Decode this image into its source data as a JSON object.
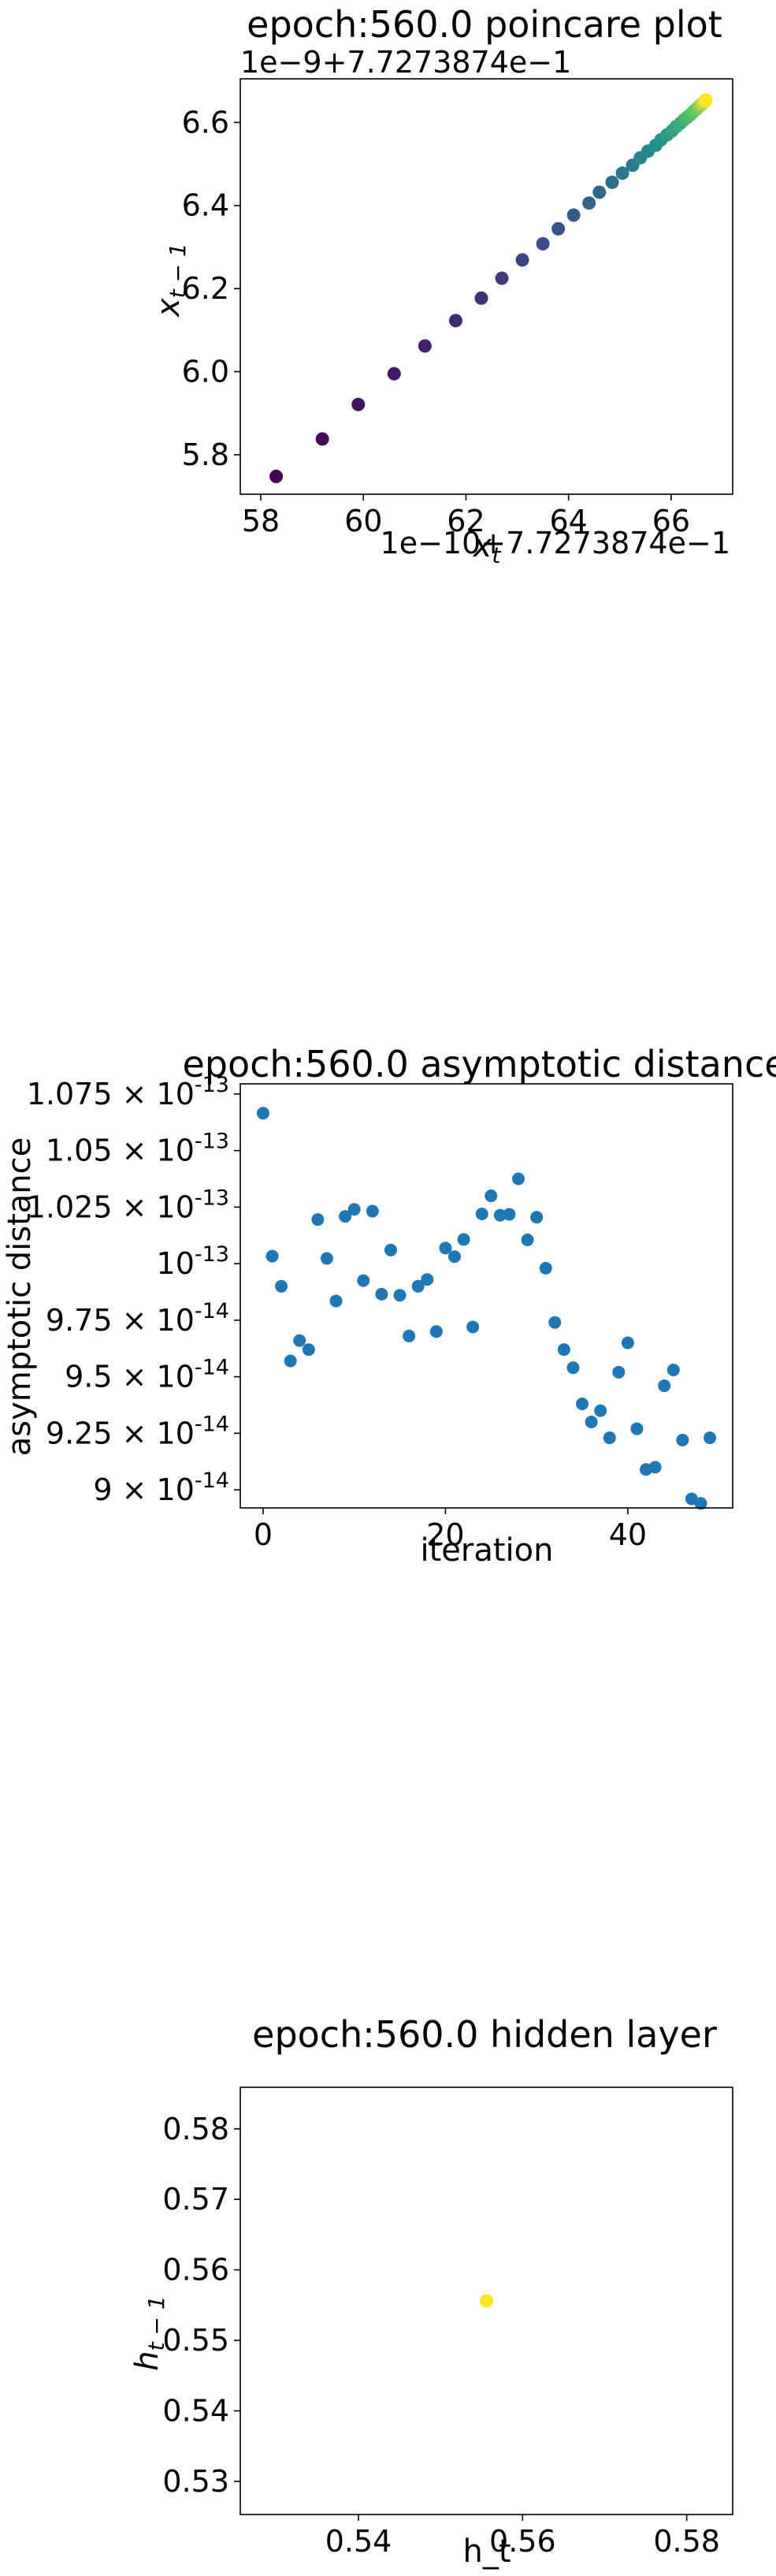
{
  "chart_data": [
    {
      "type": "scatter",
      "title": "epoch:560.0 poincare plot",
      "xlabel": "x_t",
      "ylabel": "x_{t-1}",
      "x_offset_text": "1e−10+7.7273874e−1",
      "y_offset_text": "1e−9+7.7273874e−1",
      "xlim": [
        57.6,
        67.2
      ],
      "ylim": [
        5.705,
        6.705
      ],
      "xticks": [
        58,
        60,
        62,
        64,
        66
      ],
      "xtick_labels": [
        "58",
        "60",
        "62",
        "64",
        "66"
      ],
      "yticks": [
        5.8,
        6.0,
        6.2,
        6.4,
        6.6
      ],
      "ytick_labels": [
        "5.8",
        "6.0",
        "6.2",
        "6.4",
        "6.6"
      ],
      "colormap": "viridis",
      "points": [
        {
          "x": 58.3,
          "y": 5.748
        },
        {
          "x": 59.2,
          "y": 5.838
        },
        {
          "x": 59.9,
          "y": 5.921
        },
        {
          "x": 60.6,
          "y": 5.995
        },
        {
          "x": 61.2,
          "y": 6.062
        },
        {
          "x": 61.8,
          "y": 6.123
        },
        {
          "x": 62.3,
          "y": 6.177
        },
        {
          "x": 62.7,
          "y": 6.225
        },
        {
          "x": 63.1,
          "y": 6.269
        },
        {
          "x": 63.5,
          "y": 6.308
        },
        {
          "x": 63.8,
          "y": 6.344
        },
        {
          "x": 64.1,
          "y": 6.377
        },
        {
          "x": 64.4,
          "y": 6.406
        },
        {
          "x": 64.6,
          "y": 6.432
        },
        {
          "x": 64.85,
          "y": 6.456
        },
        {
          "x": 65.05,
          "y": 6.478
        },
        {
          "x": 65.25,
          "y": 6.497
        },
        {
          "x": 65.4,
          "y": 6.515
        },
        {
          "x": 65.55,
          "y": 6.531
        },
        {
          "x": 65.7,
          "y": 6.545
        },
        {
          "x": 65.8,
          "y": 6.558
        },
        {
          "x": 65.92,
          "y": 6.57
        },
        {
          "x": 66.02,
          "y": 6.58
        },
        {
          "x": 66.1,
          "y": 6.59
        },
        {
          "x": 66.18,
          "y": 6.598
        },
        {
          "x": 66.25,
          "y": 6.606
        },
        {
          "x": 66.31,
          "y": 6.612
        },
        {
          "x": 66.37,
          "y": 6.618
        },
        {
          "x": 66.42,
          "y": 6.624
        },
        {
          "x": 66.46,
          "y": 6.629
        },
        {
          "x": 66.5,
          "y": 6.633
        },
        {
          "x": 66.53,
          "y": 6.637
        },
        {
          "x": 66.56,
          "y": 6.64
        },
        {
          "x": 66.59,
          "y": 6.643
        },
        {
          "x": 66.61,
          "y": 6.646
        },
        {
          "x": 66.63,
          "y": 6.648
        },
        {
          "x": 66.65,
          "y": 6.65
        },
        {
          "x": 66.66,
          "y": 6.652
        },
        {
          "x": 66.67,
          "y": 6.653
        },
        {
          "x": 66.68,
          "y": 6.654
        }
      ]
    },
    {
      "type": "scatter",
      "title": "epoch:560.0 asymptotic distance",
      "xlabel": "iteration",
      "ylabel": "asymptotic distance",
      "xlim": [
        -2.5,
        51.5
      ],
      "ylim": [
        8.92e-14,
        1.0795e-13
      ],
      "xticks": [
        0,
        20,
        40
      ],
      "xtick_labels": [
        "0",
        "20",
        "40"
      ],
      "yticks": [
        9e-14,
        9.25e-14,
        9.5e-14,
        9.75e-14,
        1e-13,
        1.025e-13,
        1.05e-13,
        1.075e-13
      ],
      "ytick_labels": [
        "9 × 10^-14",
        "9.25 × 10^-14",
        "9.5 × 10^-14",
        "9.75 × 10^-14",
        "10^-13",
        "1.025 × 10^-13",
        "1.05 × 10^-13",
        "1.075 × 10^-13"
      ],
      "color": "#1f77b4",
      "x": [
        0,
        1,
        2,
        3,
        4,
        5,
        6,
        7,
        8,
        9,
        10,
        11,
        12,
        13,
        14,
        15,
        16,
        17,
        18,
        19,
        20,
        21,
        22,
        23,
        24,
        25,
        26,
        27,
        28,
        29,
        30,
        31,
        32,
        33,
        34,
        35,
        36,
        37,
        38,
        39,
        40,
        41,
        42,
        43,
        44,
        45,
        46,
        47,
        48,
        49
      ],
      "values": [
        1.0665e-13,
        1.0033e-13,
        9.9e-14,
        9.57e-14,
        9.66e-14,
        9.62e-14,
        1.0195e-13,
        1.0023e-13,
        9.835e-14,
        1.0209e-13,
        1.024e-13,
        9.925e-14,
        1.0232e-13,
        9.865e-14,
        1.006e-13,
        9.86e-14,
        9.68e-14,
        9.9e-14,
        9.93e-14,
        9.7e-14,
        1.0069e-13,
        1.0031e-13,
        1.0107e-13,
        9.72e-14,
        1.022e-13,
        1.03e-13,
        1.0214e-13,
        1.0218e-13,
        1.0375e-13,
        1.0105e-13,
        1.0205e-13,
        9.98e-14,
        9.74e-14,
        9.62e-14,
        9.54e-14,
        9.38e-14,
        9.3e-14,
        9.35e-14,
        9.23e-14,
        9.52e-14,
        9.65e-14,
        9.27e-14,
        9.09e-14,
        9.1e-14,
        9.46e-14,
        9.53e-14,
        9.22e-14,
        8.96e-14,
        8.94e-14,
        9.23e-14
      ]
    },
    {
      "type": "scatter",
      "title": "epoch:560.0 hidden layer",
      "xlabel": "h_t",
      "ylabel": "h_{t-1}",
      "xlim": [
        0.5256,
        0.5856
      ],
      "ylim": [
        0.5253,
        0.5859
      ],
      "xticks": [
        0.54,
        0.56,
        0.58
      ],
      "xtick_labels": [
        "0.54",
        "0.56",
        "0.58"
      ],
      "yticks": [
        0.53,
        0.54,
        0.55,
        0.56,
        0.57,
        0.58
      ],
      "ytick_labels": [
        "0.53",
        "0.54",
        "0.55",
        "0.56",
        "0.57",
        "0.58"
      ],
      "color": "#fde725",
      "points": [
        {
          "x": 0.5556,
          "y": 0.5556
        }
      ]
    }
  ]
}
